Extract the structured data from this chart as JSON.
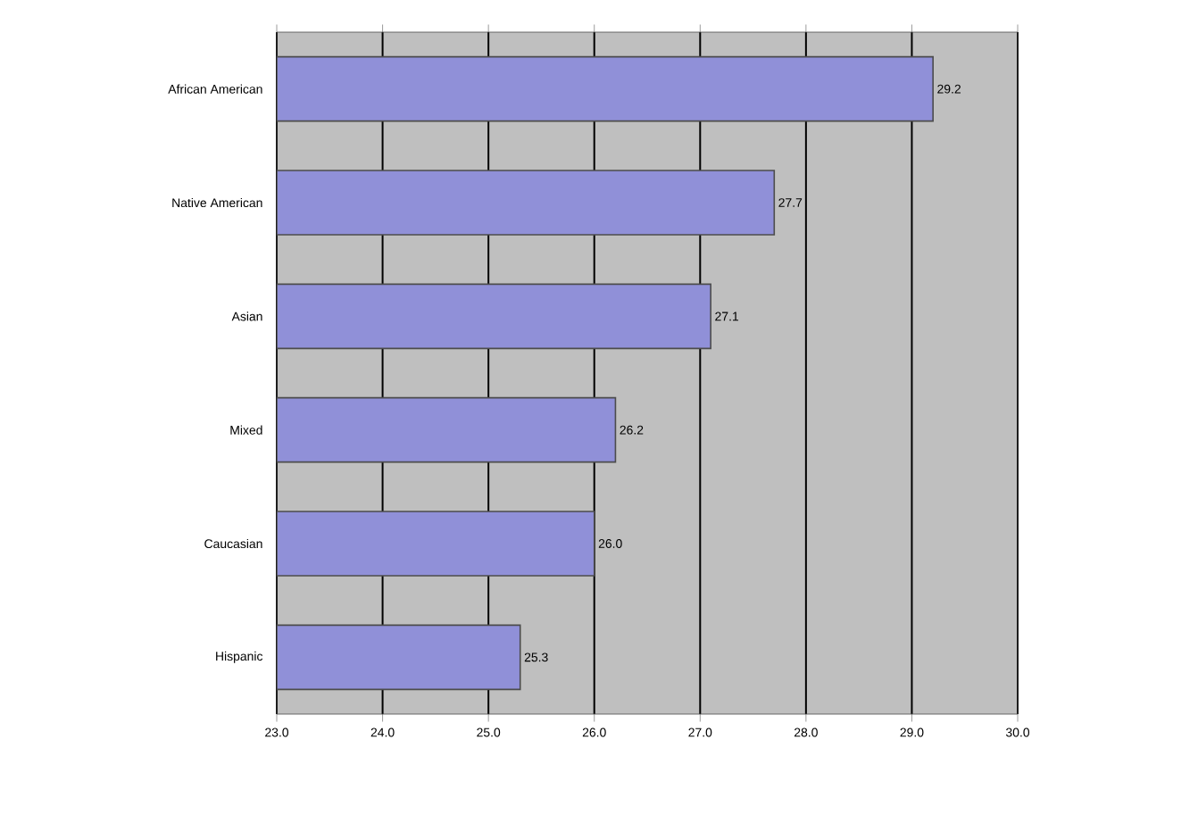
{
  "chart_data": {
    "type": "bar",
    "orientation": "horizontal",
    "categories": [
      "African American",
      "Native American",
      "Asian",
      "Mixed",
      "Caucasian",
      "Hispanic"
    ],
    "values": [
      29.2,
      27.7,
      27.1,
      26.2,
      26.0,
      25.3
    ],
    "value_labels": [
      "29.2",
      "27.7",
      "27.1",
      "26.2",
      "26.0",
      "25.3"
    ],
    "color": "#9090d8",
    "xlim": [
      23,
      30
    ],
    "xticks": [
      {
        "value": 23,
        "label": "23.0"
      },
      {
        "value": 24,
        "label": "24.0"
      },
      {
        "value": 25,
        "label": "25.0"
      },
      {
        "value": 26,
        "label": "26.0"
      },
      {
        "value": 27,
        "label": "27.0"
      },
      {
        "value": 28,
        "label": "28.0"
      },
      {
        "value": 29,
        "label": "29.0"
      },
      {
        "value": 30,
        "label": "30.0"
      }
    ],
    "grid": "x"
  }
}
